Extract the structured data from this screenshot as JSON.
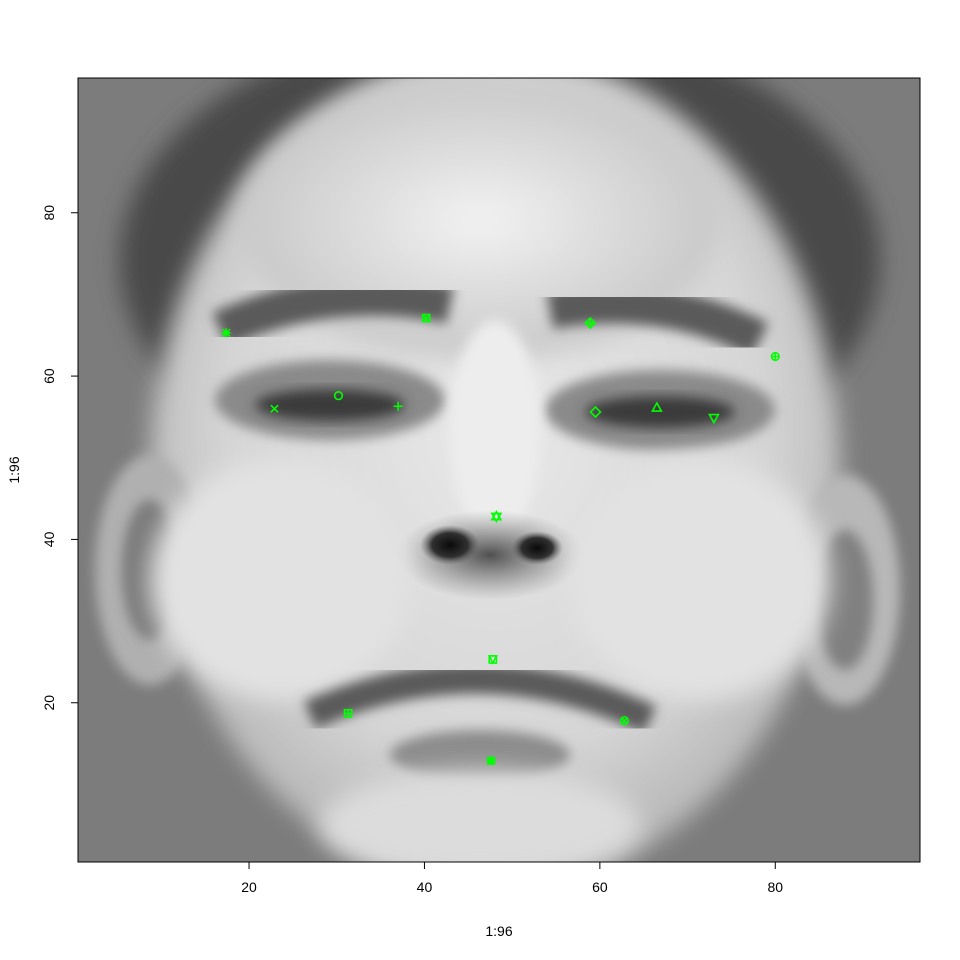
{
  "chart_data": {
    "type": "scatter",
    "background": "grayscale face image (96x96 pixels)",
    "xlabel": "1:96",
    "ylabel": "1:96",
    "xlim": [
      0.5,
      96.5
    ],
    "ylim": [
      0.5,
      96.5
    ],
    "x_ticks": [
      20,
      40,
      60,
      80
    ],
    "y_ticks": [
      20,
      40,
      60,
      80
    ],
    "grid": false,
    "marker_color": "#00ff00",
    "points": [
      {
        "name": "left_eye_center",
        "marker": "circle",
        "x": 30.2,
        "y": 57.6
      },
      {
        "name": "right_eye_center",
        "marker": "triangle",
        "x": 66.5,
        "y": 56.1
      },
      {
        "name": "left_eye_inner_corner",
        "marker": "plus",
        "x": 37.0,
        "y": 56.3
      },
      {
        "name": "left_eye_outer_corner",
        "marker": "cross",
        "x": 22.9,
        "y": 56.0
      },
      {
        "name": "right_eye_inner_corner",
        "marker": "diamond",
        "x": 59.5,
        "y": 55.6
      },
      {
        "name": "right_eye_outer_corner",
        "marker": "triangle-down",
        "x": 73.0,
        "y": 54.9
      },
      {
        "name": "left_eyebrow_inner_end",
        "marker": "square-cross",
        "x": 40.2,
        "y": 67.1
      },
      {
        "name": "left_eyebrow_outer_end",
        "marker": "asterisk",
        "x": 17.4,
        "y": 65.3
      },
      {
        "name": "right_eyebrow_inner_end",
        "marker": "diamond-plus",
        "x": 58.9,
        "y": 66.5
      },
      {
        "name": "right_eyebrow_outer_end",
        "marker": "circle-plus",
        "x": 80.0,
        "y": 62.4
      },
      {
        "name": "nose_tip",
        "marker": "triangle-updown",
        "x": 48.2,
        "y": 42.8
      },
      {
        "name": "mouth_left_corner",
        "marker": "square-plus",
        "x": 31.3,
        "y": 18.7
      },
      {
        "name": "mouth_right_corner",
        "marker": "circle-cross",
        "x": 62.8,
        "y": 17.8
      },
      {
        "name": "mouth_center_top_lip",
        "marker": "square-triangle",
        "x": 47.8,
        "y": 25.3
      },
      {
        "name": "mouth_center_bottom_lip",
        "marker": "filled-square",
        "x": 47.6,
        "y": 12.9
      }
    ]
  }
}
